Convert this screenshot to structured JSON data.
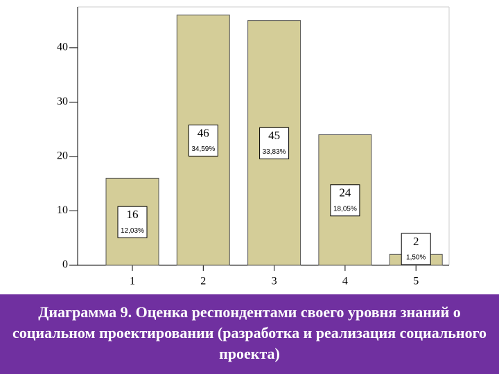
{
  "chart_data": {
    "type": "bar",
    "categories": [
      "1",
      "2",
      "3",
      "4",
      "5"
    ],
    "values": [
      16,
      46,
      45,
      24,
      2
    ],
    "percent_labels": [
      "12,03%",
      "34,59%",
      "33,83%",
      "18,05%",
      "1,50%"
    ],
    "color": "#d4cd98",
    "ylim": [
      0,
      47.5
    ],
    "yticks": [
      0,
      10,
      20,
      30,
      40
    ]
  },
  "caption": "Диаграмма 9. Оценка респондентами своего уровня знаний о социальном проектировании (разработка и реализация социального проекта)"
}
